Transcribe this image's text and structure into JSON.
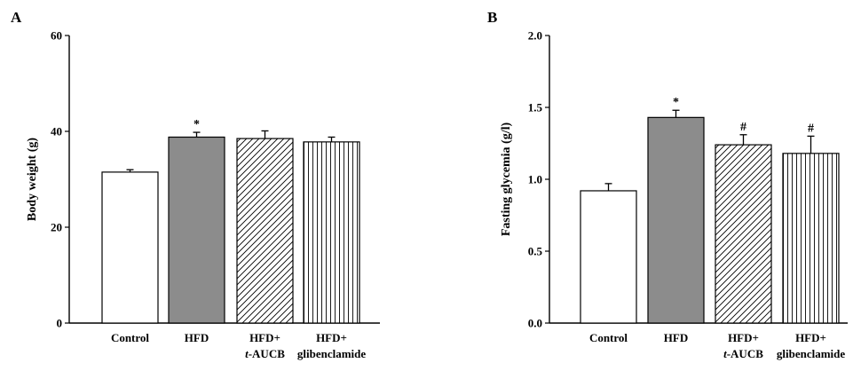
{
  "chart_data": [
    {
      "panel": "A",
      "type": "bar",
      "title": "",
      "xlabel": "",
      "ylabel": "Body weight (g)",
      "ylim": [
        0,
        60
      ],
      "yticks": [
        "0",
        "20",
        "40",
        "60"
      ],
      "categories": [
        {
          "line1": "Control",
          "line2": "",
          "line2_italic": "",
          "line2_rest": ""
        },
        {
          "line1": "HFD",
          "line2": "",
          "line2_italic": "",
          "line2_rest": ""
        },
        {
          "line1": "HFD+",
          "line2": "",
          "line2_italic": "t",
          "line2_rest": "-AUCB"
        },
        {
          "line1": "HFD+",
          "line2": "glibenclamide",
          "line2_italic": "",
          "line2_rest": ""
        }
      ],
      "values": [
        31.5,
        38.8,
        38.5,
        37.8
      ],
      "errors": [
        0.5,
        1.0,
        1.6,
        1.0
      ],
      "annotations": [
        "",
        "*",
        "",
        ""
      ],
      "fills": [
        "white",
        "gray",
        "diagonal",
        "vertical"
      ],
      "colors": {
        "gray": "#8c8c8c",
        "stroke": "#000000"
      }
    },
    {
      "panel": "B",
      "type": "bar",
      "title": "",
      "xlabel": "",
      "ylabel": "Fasting glycemia (g/l)",
      "ylim": [
        0,
        2.0
      ],
      "yticks": [
        "0.0",
        "0.5",
        "1.0",
        "1.5",
        "2.0"
      ],
      "categories": [
        {
          "line1": "Control",
          "line2": "",
          "line2_italic": "",
          "line2_rest": ""
        },
        {
          "line1": "HFD",
          "line2": "",
          "line2_italic": "",
          "line2_rest": ""
        },
        {
          "line1": "HFD+",
          "line2": "",
          "line2_italic": "t",
          "line2_rest": "-AUCB"
        },
        {
          "line1": "HFD+",
          "line2": "glibenclamide",
          "line2_italic": "",
          "line2_rest": ""
        }
      ],
      "values": [
        0.92,
        1.43,
        1.24,
        1.18
      ],
      "errors": [
        0.05,
        0.05,
        0.07,
        0.12
      ],
      "annotations": [
        "",
        "*",
        "#",
        "#"
      ],
      "fills": [
        "white",
        "gray",
        "diagonal",
        "vertical"
      ],
      "colors": {
        "gray": "#8c8c8c",
        "stroke": "#000000"
      }
    }
  ]
}
